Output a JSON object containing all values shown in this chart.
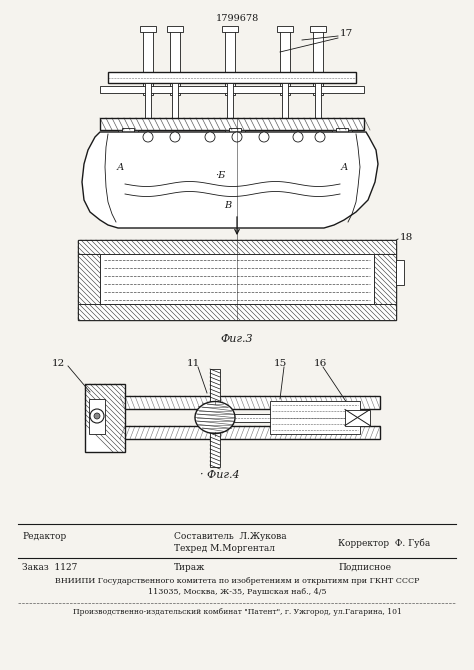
{
  "patent_number": "1799678",
  "bg_color": "#f5f3ee",
  "line_color": "#1a1a1a",
  "hatch_color": "#1a1a1a",
  "footer": {
    "editor_label": "Редактор",
    "compositor_label": "Составитель  Л.Жукова",
    "techred_label": "Техред М.Моргентал",
    "corrector_label": "Корректор  Ф. Губа",
    "order_label": "Заказ  1127",
    "tirazh_label": "Тираж",
    "podpisnoe_label": "Подписное",
    "vnipi_line1": "ВНИИПИ Государственного комитета по изобретениям и открытиям при ГКНТ СССР",
    "vnipi_line2": "113035, Москва, Ж-35, Раушская наб., 4/5",
    "production_line": "Производственно-издательский комбинат \"Патент\", г. Ужгород, ул.Гагарина, 101"
  },
  "fig3_label": "Фиг.3",
  "fig4_label": "Фиг.4",
  "label_17": "17",
  "label_18": "18",
  "label_12": "12",
  "label_11": "11",
  "label_15": "15",
  "label_16": "16",
  "label_A1": "А",
  "label_A2": "А",
  "label_B": "Б",
  "label_V": "В"
}
